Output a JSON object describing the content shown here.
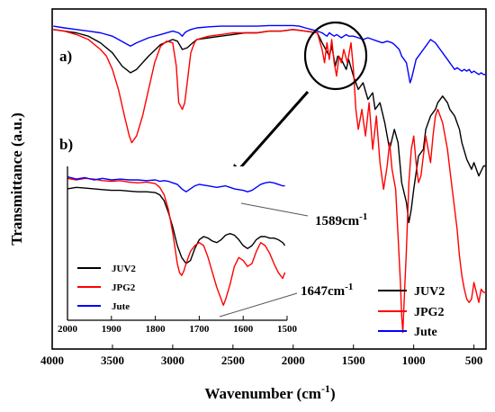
{
  "chart_data": {
    "type": "line",
    "main": {
      "xlabel_main": "Wavenumber (cm",
      "xlabel_sup": "-1",
      "xlabel_close": ")",
      "ylabel": "Transmittance (a.u.)",
      "xlim": [
        4000,
        400
      ],
      "xticks": [
        "4000",
        "3500",
        "3000",
        "2500",
        "2000",
        "1500",
        "1000",
        "500"
      ],
      "xtick_values": [
        4000,
        3500,
        3000,
        2500,
        2000,
        1500,
        1000,
        500
      ],
      "panel_a": "a)",
      "panel_b": "b)",
      "legend": [
        "JUV2",
        "JPG2",
        "Jute"
      ],
      "colors": {
        "JUV2": "#000000",
        "JPG2": "#ff0000",
        "Jute": "#0000ff"
      },
      "ylim": [
        0,
        100
      ],
      "series": [
        {
          "name": "JUV2",
          "color": "#000000",
          "x": [
            3990,
            3900,
            3800,
            3700,
            3600,
            3500,
            3420,
            3350,
            3300,
            3200,
            3100,
            3000,
            2960,
            2920,
            2880,
            2850,
            2800,
            2700,
            2600,
            2500,
            2400,
            2300,
            2200,
            2100,
            2000,
            1900,
            1800,
            1760,
            1730,
            1700,
            1680,
            1650,
            1630,
            1600,
            1560,
            1540,
            1500,
            1460,
            1420,
            1380,
            1340,
            1320,
            1280,
            1240,
            1200,
            1160,
            1130,
            1100,
            1060,
            1040,
            1020,
            1000,
            960,
            920,
            900,
            860,
            820,
            800,
            760,
            720,
            700,
            660,
            620,
            600,
            560,
            520,
            500,
            460,
            420,
            400
          ],
          "y": [
            96,
            95.5,
            95,
            94,
            92,
            89,
            85,
            83,
            84,
            88,
            91.5,
            93,
            92.5,
            90,
            90.5,
            91.5,
            93,
            93.5,
            94,
            94.5,
            95,
            95,
            95.5,
            95.5,
            96,
            95.5,
            95,
            92,
            90,
            88,
            91,
            85,
            88,
            87,
            84,
            87,
            82,
            78,
            80,
            75,
            77,
            72,
            74,
            68,
            60,
            66,
            62,
            50,
            44,
            38,
            42,
            48,
            58,
            60,
            66,
            70,
            72,
            74,
            76,
            74,
            72,
            70,
            66,
            62,
            57,
            54,
            56,
            52,
            55,
            55
          ]
        },
        {
          "name": "JPG2",
          "color": "#ff0000",
          "x": [
            3990,
            3900,
            3800,
            3700,
            3600,
            3550,
            3500,
            3450,
            3400,
            3360,
            3340,
            3300,
            3250,
            3200,
            3150,
            3100,
            3050,
            3000,
            2970,
            2950,
            2920,
            2900,
            2880,
            2850,
            2820,
            2800,
            2750,
            2700,
            2600,
            2500,
            2400,
            2300,
            2200,
            2100,
            2000,
            1900,
            1800,
            1760,
            1740,
            1720,
            1700,
            1680,
            1660,
            1640,
            1620,
            1600,
            1580,
            1550,
            1520,
            1500,
            1480,
            1460,
            1430,
            1400,
            1370,
            1340,
            1310,
            1280,
            1250,
            1220,
            1200,
            1180,
            1150,
            1130,
            1110,
            1100,
            1090,
            1080,
            1060,
            1040,
            1020,
            1000,
            980,
            960,
            940,
            920,
            900,
            880,
            860,
            840,
            820,
            800,
            780,
            760,
            740,
            720,
            700,
            680,
            660,
            640,
            620,
            600,
            580,
            560,
            540,
            520,
            500,
            480,
            460,
            440,
            420,
            400
          ],
          "y": [
            96,
            95.5,
            94.5,
            93,
            90,
            88,
            84,
            78,
            70,
            64,
            62,
            64,
            70,
            78,
            86,
            91,
            92.5,
            92,
            85,
            74,
            72,
            74,
            80,
            89,
            92,
            93,
            93.5,
            94,
            94.5,
            95,
            95,
            95,
            95.5,
            95.5,
            96,
            95.5,
            95,
            90,
            86,
            92,
            87,
            93,
            86,
            82,
            88,
            86,
            90,
            86,
            92,
            84,
            72,
            66,
            72,
            64,
            74,
            60,
            70,
            56,
            48,
            55,
            62,
            54,
            48,
            34,
            20,
            10,
            5,
            14,
            30,
            50,
            60,
            64,
            56,
            50,
            52,
            58,
            64,
            60,
            56,
            64,
            70,
            72,
            70,
            68,
            64,
            60,
            54,
            48,
            42,
            36,
            28,
            22,
            18,
            15,
            14,
            15,
            20,
            17,
            14,
            18,
            17,
            17
          ]
        },
        {
          "name": "Jute",
          "color": "#0000ff",
          "x": [
            3990,
            3900,
            3800,
            3700,
            3600,
            3500,
            3450,
            3400,
            3350,
            3300,
            3200,
            3100,
            3000,
            2950,
            2920,
            2900,
            2880,
            2850,
            2800,
            2700,
            2600,
            2500,
            2400,
            2300,
            2200,
            2100,
            2000,
            1950,
            1900,
            1850,
            1800,
            1760,
            1740,
            1720,
            1700,
            1680,
            1660,
            1640,
            1620,
            1600,
            1580,
            1560,
            1540,
            1500,
            1460,
            1420,
            1380,
            1340,
            1300,
            1260,
            1220,
            1180,
            1160,
            1120,
            1100,
            1080,
            1060,
            1040,
            1030,
            1020,
            1000,
            980,
            960,
            940,
            920,
            900,
            880,
            860,
            840,
            820,
            800,
            780,
            760,
            740,
            720,
            700,
            680,
            660,
            640,
            620,
            600,
            580,
            560,
            540,
            520,
            500,
            480,
            460,
            440,
            420,
            400
          ],
          "y": [
            97,
            96.5,
            96,
            95.5,
            95,
            94,
            93,
            92,
            91,
            92,
            93.5,
            94.5,
            95.5,
            95,
            94,
            95,
            95.5,
            96,
            96.5,
            96.8,
            97,
            97,
            97,
            97,
            97.2,
            97.2,
            97.2,
            97,
            96.5,
            96,
            95.5,
            95,
            94.5,
            94,
            95,
            94.5,
            94,
            94.5,
            94,
            93.5,
            94,
            94.5,
            94,
            94,
            93.5,
            93,
            93.5,
            93,
            92.5,
            92,
            92.5,
            92,
            91.5,
            90,
            88,
            87,
            86,
            82,
            80,
            81,
            84,
            87,
            88,
            89,
            90,
            91,
            92,
            93,
            92.5,
            92,
            91,
            90,
            89,
            88,
            87,
            86,
            85,
            84,
            84.5,
            84,
            83.5,
            84,
            83.5,
            84,
            83,
            83.5,
            83,
            82.5,
            83,
            82.5,
            82.5
          ]
        }
      ]
    },
    "inset": {
      "xlim": [
        2000,
        1500
      ],
      "xticks": [
        "2000",
        "1900",
        "1800",
        "1700",
        "1600",
        "1500"
      ],
      "xtick_values": [
        2000,
        1900,
        1800,
        1700,
        1600,
        1500
      ],
      "legend": [
        "JUV2",
        "JPG2",
        "Jute"
      ],
      "ylim": [
        0,
        100
      ],
      "series": [
        {
          "name": "JUV2",
          "color": "#000000",
          "x": [
            2000,
            1980,
            1960,
            1940,
            1920,
            1900,
            1880,
            1860,
            1840,
            1820,
            1800,
            1790,
            1780,
            1770,
            1760,
            1750,
            1740,
            1730,
            1720,
            1710,
            1700,
            1690,
            1680,
            1670,
            1660,
            1650,
            1640,
            1630,
            1620,
            1610,
            1600,
            1590,
            1580,
            1570,
            1560,
            1550,
            1540,
            1530,
            1520,
            1510,
            1505
          ],
          "y": [
            88,
            89,
            88.5,
            88,
            87.5,
            87,
            87,
            86.5,
            86,
            86,
            85.5,
            84,
            80,
            72,
            62,
            50,
            42,
            38,
            40,
            48,
            54,
            56,
            55,
            53,
            52,
            54,
            57,
            58,
            57,
            54,
            50,
            48,
            50,
            54,
            56,
            56,
            55,
            55,
            54,
            52,
            50
          ]
        },
        {
          "name": "JPG2",
          "color": "#ff0000",
          "x": [
            2000,
            1980,
            1960,
            1940,
            1920,
            1900,
            1880,
            1860,
            1840,
            1820,
            1800,
            1790,
            1780,
            1770,
            1760,
            1750,
            1745,
            1740,
            1735,
            1730,
            1725,
            1720,
            1710,
            1700,
            1690,
            1680,
            1670,
            1660,
            1650,
            1645,
            1640,
            1630,
            1620,
            1610,
            1600,
            1590,
            1580,
            1570,
            1560,
            1550,
            1540,
            1530,
            1520,
            1510,
            1505
          ],
          "y": [
            95,
            94,
            95,
            94.5,
            93.5,
            93,
            93.5,
            92.5,
            92,
            92.5,
            91.5,
            89,
            84,
            74,
            58,
            38,
            32,
            30,
            33,
            38,
            42,
            46,
            50,
            52,
            50,
            42,
            32,
            22,
            14,
            10,
            14,
            24,
            36,
            42,
            40,
            36,
            38,
            46,
            52,
            50,
            45,
            38,
            32,
            28,
            32
          ]
        },
        {
          "name": "Jute",
          "color": "#0000ff",
          "x": [
            2000,
            1980,
            1960,
            1940,
            1920,
            1900,
            1880,
            1860,
            1840,
            1820,
            1800,
            1790,
            1780,
            1770,
            1760,
            1750,
            1740,
            1730,
            1720,
            1710,
            1700,
            1690,
            1680,
            1670,
            1660,
            1650,
            1640,
            1630,
            1620,
            1610,
            1600,
            1590,
            1580,
            1570,
            1560,
            1550,
            1540,
            1530,
            1520,
            1510,
            1505
          ],
          "y": [
            96,
            94.5,
            95.5,
            94,
            95,
            94,
            94.5,
            94,
            94,
            93.5,
            94,
            93,
            93.5,
            93,
            92,
            91,
            88,
            86,
            88,
            90,
            91,
            90.5,
            90,
            89.5,
            89,
            89.5,
            90,
            89,
            88,
            87.5,
            87,
            86,
            87,
            89,
            91,
            92,
            92.5,
            92,
            91,
            90,
            90
          ]
        }
      ]
    },
    "annotations": [
      {
        "text_main": "1589cm",
        "text_sup": "-1"
      },
      {
        "text_main": "1647cm",
        "text_sup": "-1"
      }
    ]
  }
}
